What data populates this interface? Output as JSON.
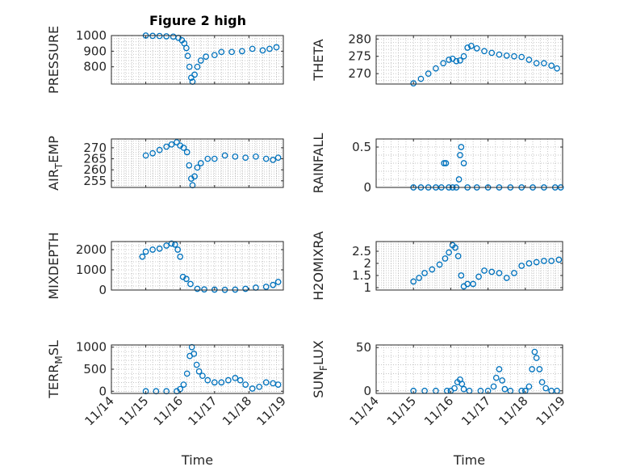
{
  "figure_title": "Figure 2 high",
  "colors": {
    "marker": "#0072BD",
    "axes": "#262626",
    "grid": "#b0b0b0",
    "background": "#ffffff"
  },
  "chart_data": [
    {
      "id": "pressure",
      "type": "scatter",
      "ylabel": "PRESSURE",
      "ylabel_sub": "",
      "ylabel_post": "",
      "xlabel": "",
      "xlim": [
        0,
        5
      ],
      "ylim": [
        690,
        1000
      ],
      "yticks": [
        800,
        900,
        1000
      ],
      "xticks": [
        0,
        1,
        2,
        3,
        4,
        5
      ],
      "xticklabels": [
        "11/14",
        "11/15",
        "11/16",
        "11/17",
        "11/18",
        "11/19"
      ],
      "show_xticklabels": false,
      "points": [
        [
          1.0,
          1000
        ],
        [
          1.2,
          998
        ],
        [
          1.4,
          997
        ],
        [
          1.6,
          995
        ],
        [
          1.8,
          993
        ],
        [
          1.95,
          985
        ],
        [
          2.05,
          970
        ],
        [
          2.12,
          950
        ],
        [
          2.18,
          920
        ],
        [
          2.22,
          870
        ],
        [
          2.27,
          800
        ],
        [
          2.32,
          730
        ],
        [
          2.36,
          705
        ],
        [
          2.42,
          750
        ],
        [
          2.5,
          800
        ],
        [
          2.6,
          840
        ],
        [
          2.75,
          865
        ],
        [
          3.0,
          875
        ],
        [
          3.2,
          895
        ],
        [
          3.5,
          895
        ],
        [
          3.8,
          900
        ],
        [
          4.1,
          915
        ],
        [
          4.4,
          905
        ],
        [
          4.6,
          915
        ],
        [
          4.8,
          925
        ]
      ]
    },
    {
      "id": "theta",
      "type": "scatter",
      "ylabel": "THETA",
      "ylabel_sub": "",
      "ylabel_post": "",
      "xlabel": "",
      "xlim": [
        0,
        5
      ],
      "ylim": [
        267,
        281
      ],
      "yticks": [
        270,
        275,
        280
      ],
      "xticks": [
        0,
        1,
        2,
        3,
        4,
        5
      ],
      "xticklabels": [
        "11/14",
        "11/15",
        "11/16",
        "11/17",
        "11/18",
        "11/19"
      ],
      "show_xticklabels": false,
      "points": [
        [
          1.0,
          267.2
        ],
        [
          1.2,
          268.5
        ],
        [
          1.4,
          270.0
        ],
        [
          1.6,
          271.5
        ],
        [
          1.8,
          273.0
        ],
        [
          1.95,
          274.0
        ],
        [
          2.05,
          274.3
        ],
        [
          2.15,
          273.6
        ],
        [
          2.25,
          273.8
        ],
        [
          2.35,
          275.0
        ],
        [
          2.45,
          277.5
        ],
        [
          2.55,
          278.0
        ],
        [
          2.7,
          277.3
        ],
        [
          2.9,
          276.5
        ],
        [
          3.1,
          276.0
        ],
        [
          3.3,
          275.5
        ],
        [
          3.5,
          275.2
        ],
        [
          3.7,
          275.0
        ],
        [
          3.9,
          274.8
        ],
        [
          4.1,
          274.0
        ],
        [
          4.3,
          273.0
        ],
        [
          4.5,
          273.0
        ],
        [
          4.7,
          272.3
        ],
        [
          4.85,
          271.5
        ]
      ]
    },
    {
      "id": "air_temp",
      "type": "scatter",
      "ylabel": "AIR",
      "ylabel_sub": "T",
      "ylabel_post": "EMP",
      "xlabel": "",
      "xlim": [
        0,
        5
      ],
      "ylim": [
        252,
        274
      ],
      "yticks": [
        255,
        260,
        265,
        270
      ],
      "xticks": [
        0,
        1,
        2,
        3,
        4,
        5
      ],
      "xticklabels": [
        "11/14",
        "11/15",
        "11/16",
        "11/17",
        "11/18",
        "11/19"
      ],
      "show_xticklabels": false,
      "points": [
        [
          1.0,
          266.5
        ],
        [
          1.2,
          267.5
        ],
        [
          1.4,
          269.0
        ],
        [
          1.6,
          270.5
        ],
        [
          1.75,
          271.5
        ],
        [
          1.9,
          272.5
        ],
        [
          2.0,
          271.0
        ],
        [
          2.1,
          270.0
        ],
        [
          2.2,
          268.0
        ],
        [
          2.26,
          262.0
        ],
        [
          2.32,
          256.0
        ],
        [
          2.36,
          253.0
        ],
        [
          2.42,
          257.0
        ],
        [
          2.5,
          261.0
        ],
        [
          2.6,
          263.0
        ],
        [
          2.8,
          265.0
        ],
        [
          3.0,
          265.0
        ],
        [
          3.3,
          266.5
        ],
        [
          3.6,
          266.0
        ],
        [
          3.9,
          265.5
        ],
        [
          4.2,
          266.0
        ],
        [
          4.5,
          265.0
        ],
        [
          4.7,
          264.5
        ],
        [
          4.85,
          265.5
        ]
      ]
    },
    {
      "id": "rainfall",
      "type": "scatter",
      "ylabel": "RAINFALL",
      "ylabel_sub": "",
      "ylabel_post": "",
      "xlabel": "",
      "xlim": [
        0,
        5
      ],
      "ylim": [
        0,
        0.6
      ],
      "yticks": [
        0,
        0.5
      ],
      "xticks": [
        0,
        1,
        2,
        3,
        4,
        5
      ],
      "xticklabels": [
        "11/14",
        "11/15",
        "11/16",
        "11/17",
        "11/18",
        "11/19"
      ],
      "show_xticklabels": false,
      "points": [
        [
          1.0,
          0
        ],
        [
          1.2,
          0
        ],
        [
          1.4,
          0
        ],
        [
          1.6,
          0
        ],
        [
          1.75,
          0
        ],
        [
          1.82,
          0.3
        ],
        [
          1.87,
          0.3
        ],
        [
          1.95,
          0
        ],
        [
          2.05,
          0
        ],
        [
          2.15,
          0
        ],
        [
          2.22,
          0.1
        ],
        [
          2.25,
          0.4
        ],
        [
          2.28,
          0.5
        ],
        [
          2.35,
          0.3
        ],
        [
          2.45,
          0
        ],
        [
          2.7,
          0
        ],
        [
          3.0,
          0
        ],
        [
          3.3,
          0
        ],
        [
          3.6,
          0
        ],
        [
          3.9,
          0
        ],
        [
          4.2,
          0
        ],
        [
          4.5,
          0
        ],
        [
          4.8,
          0
        ],
        [
          4.95,
          0
        ]
      ]
    },
    {
      "id": "mixdepth",
      "type": "scatter",
      "ylabel": "MIXDEPTH",
      "ylabel_sub": "",
      "ylabel_post": "",
      "xlabel": "",
      "xlim": [
        0,
        5
      ],
      "ylim": [
        0,
        2400
      ],
      "yticks": [
        0,
        1000,
        2000
      ],
      "xticks": [
        0,
        1,
        2,
        3,
        4,
        5
      ],
      "xticklabels": [
        "11/14",
        "11/15",
        "11/16",
        "11/17",
        "11/18",
        "11/19"
      ],
      "show_xticklabels": false,
      "points": [
        [
          0.9,
          1650
        ],
        [
          1.0,
          1900
        ],
        [
          1.2,
          2000
        ],
        [
          1.4,
          2050
        ],
        [
          1.6,
          2200
        ],
        [
          1.75,
          2300
        ],
        [
          1.85,
          2250
        ],
        [
          1.93,
          2000
        ],
        [
          2.0,
          1650
        ],
        [
          2.08,
          650
        ],
        [
          2.18,
          550
        ],
        [
          2.3,
          300
        ],
        [
          2.5,
          60
        ],
        [
          2.7,
          30
        ],
        [
          3.0,
          20
        ],
        [
          3.3,
          10
        ],
        [
          3.6,
          20
        ],
        [
          3.9,
          60
        ],
        [
          4.2,
          120
        ],
        [
          4.5,
          160
        ],
        [
          4.7,
          250
        ],
        [
          4.85,
          400
        ]
      ]
    },
    {
      "id": "h2omixra",
      "type": "scatter",
      "ylabel": "H2OMIXRA",
      "ylabel_sub": "",
      "ylabel_post": "",
      "xlabel": "",
      "xlim": [
        0,
        5
      ],
      "ylim": [
        0.9,
        2.9
      ],
      "yticks": [
        1,
        1.5,
        2,
        2.5
      ],
      "xticks": [
        0,
        1,
        2,
        3,
        4,
        5
      ],
      "xticklabels": [
        "11/14",
        "11/15",
        "11/16",
        "11/17",
        "11/18",
        "11/19"
      ],
      "show_xticklabels": false,
      "points": [
        [
          1.0,
          1.25
        ],
        [
          1.15,
          1.4
        ],
        [
          1.3,
          1.6
        ],
        [
          1.5,
          1.75
        ],
        [
          1.7,
          1.95
        ],
        [
          1.85,
          2.2
        ],
        [
          1.95,
          2.45
        ],
        [
          2.05,
          2.75
        ],
        [
          2.12,
          2.65
        ],
        [
          2.2,
          2.3
        ],
        [
          2.28,
          1.5
        ],
        [
          2.35,
          1.05
        ],
        [
          2.45,
          1.15
        ],
        [
          2.6,
          1.15
        ],
        [
          2.75,
          1.45
        ],
        [
          2.9,
          1.7
        ],
        [
          3.1,
          1.65
        ],
        [
          3.3,
          1.6
        ],
        [
          3.5,
          1.4
        ],
        [
          3.7,
          1.6
        ],
        [
          3.9,
          1.9
        ],
        [
          4.1,
          2.0
        ],
        [
          4.3,
          2.05
        ],
        [
          4.5,
          2.1
        ],
        [
          4.7,
          2.1
        ],
        [
          4.9,
          2.15
        ]
      ]
    },
    {
      "id": "terr_msl",
      "type": "scatter",
      "ylabel": "TERR",
      "ylabel_sub": "M",
      "ylabel_post": "SL",
      "xlabel": "Time",
      "xlim": [
        0,
        5
      ],
      "ylim": [
        -50,
        1050
      ],
      "yticks": [
        0,
        500,
        1000
      ],
      "xticks": [
        0,
        1,
        2,
        3,
        4,
        5
      ],
      "xticklabels": [
        "11/14",
        "11/15",
        "11/16",
        "11/17",
        "11/18",
        "11/19"
      ],
      "show_xticklabels": true,
      "points": [
        [
          1.0,
          0
        ],
        [
          1.3,
          0
        ],
        [
          1.6,
          0
        ],
        [
          1.9,
          0
        ],
        [
          2.0,
          50
        ],
        [
          2.1,
          150
        ],
        [
          2.2,
          400
        ],
        [
          2.28,
          800
        ],
        [
          2.34,
          1000
        ],
        [
          2.4,
          850
        ],
        [
          2.48,
          600
        ],
        [
          2.55,
          450
        ],
        [
          2.65,
          350
        ],
        [
          2.8,
          250
        ],
        [
          3.0,
          200
        ],
        [
          3.2,
          200
        ],
        [
          3.4,
          250
        ],
        [
          3.6,
          300
        ],
        [
          3.75,
          250
        ],
        [
          3.9,
          150
        ],
        [
          4.1,
          60
        ],
        [
          4.3,
          100
        ],
        [
          4.5,
          200
        ],
        [
          4.7,
          180
        ],
        [
          4.85,
          150
        ]
      ]
    },
    {
      "id": "sun_flux",
      "type": "scatter",
      "ylabel": "SUN",
      "ylabel_sub": "F",
      "ylabel_post": "LUX",
      "xlabel": "Time",
      "xlim": [
        0,
        5
      ],
      "ylim": [
        -3,
        53
      ],
      "yticks": [
        0,
        50
      ],
      "xticks": [
        0,
        1,
        2,
        3,
        4,
        5
      ],
      "xticklabels": [
        "11/14",
        "11/15",
        "11/16",
        "11/17",
        "11/18",
        "11/19"
      ],
      "show_xticklabels": true,
      "points": [
        [
          1.0,
          0
        ],
        [
          1.3,
          0
        ],
        [
          1.6,
          0
        ],
        [
          1.9,
          0
        ],
        [
          2.0,
          0
        ],
        [
          2.1,
          3
        ],
        [
          2.18,
          10
        ],
        [
          2.25,
          13
        ],
        [
          2.3,
          8
        ],
        [
          2.35,
          2
        ],
        [
          2.5,
          0
        ],
        [
          2.8,
          0
        ],
        [
          3.0,
          0
        ],
        [
          3.15,
          5
        ],
        [
          3.22,
          15
        ],
        [
          3.3,
          25
        ],
        [
          3.38,
          12
        ],
        [
          3.45,
          2
        ],
        [
          3.6,
          0
        ],
        [
          3.9,
          0
        ],
        [
          4.0,
          0
        ],
        [
          4.1,
          5
        ],
        [
          4.18,
          25
        ],
        [
          4.25,
          45
        ],
        [
          4.3,
          38
        ],
        [
          4.38,
          25
        ],
        [
          4.45,
          10
        ],
        [
          4.55,
          3
        ],
        [
          4.7,
          0
        ],
        [
          4.85,
          0
        ]
      ]
    }
  ]
}
